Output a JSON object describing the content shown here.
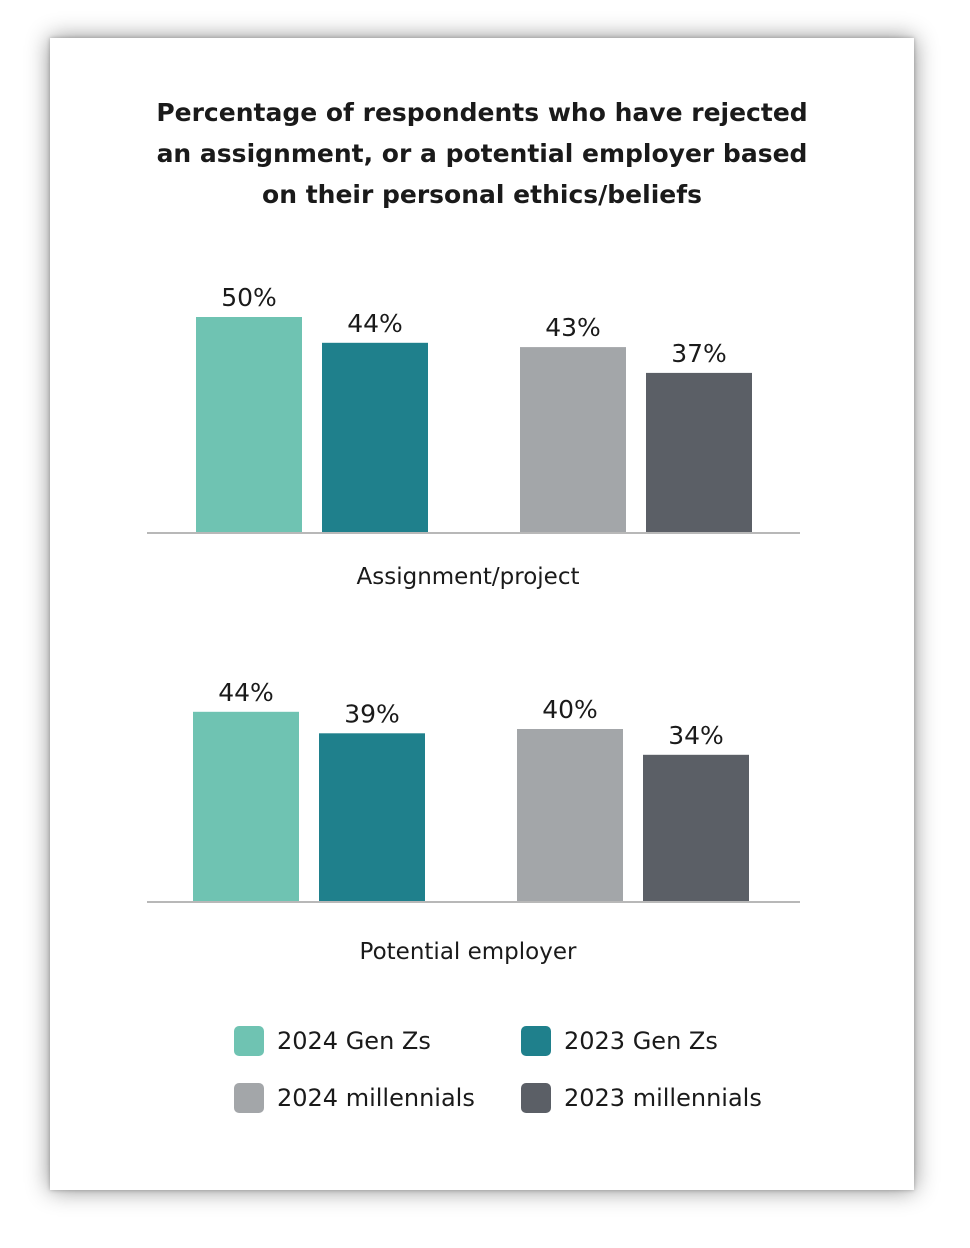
{
  "chart_data": {
    "type": "bar",
    "title_lines": [
      "Percentage of respondents who have rejected",
      "an assignment, or a potential employer based",
      "on their personal ethics/beliefs"
    ],
    "unit": "%",
    "groups": [
      {
        "category": "Assignment/project",
        "values": [
          50,
          44,
          43,
          37
        ],
        "labels": [
          "50%",
          "44%",
          "43%",
          "37%"
        ]
      },
      {
        "category": "Potential employer",
        "values": [
          44,
          39,
          40,
          34
        ],
        "labels": [
          "44%",
          "39%",
          "40%",
          "34%"
        ]
      }
    ],
    "series": [
      {
        "name": "2024 Gen Zs",
        "color": "#6fc3b2"
      },
      {
        "name": "2023 Gen Zs",
        "color": "#1f808c"
      },
      {
        "name": "2024 millennials",
        "color": "#a3a6a9"
      },
      {
        "name": "2023 millennials",
        "color": "#5b5f66"
      }
    ],
    "legend_placement": "bottom",
    "grid": false
  }
}
